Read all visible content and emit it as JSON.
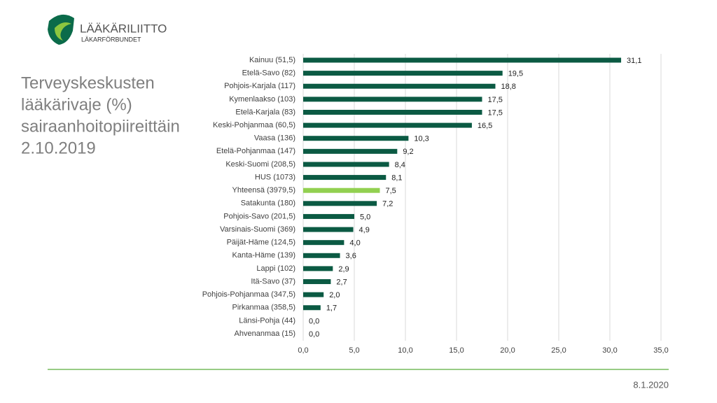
{
  "logo": {
    "name": "LÄÄKÄRILIITTO",
    "subname": "LÄKARFÖRBUNDET"
  },
  "slide_title": [
    "Terveyskeskusten",
    "lääkärivaje (%)",
    "sairaanhoitopiireittäin",
    "2.10.2019"
  ],
  "chart_data": {
    "type": "bar",
    "orientation": "horizontal",
    "categories": [
      "Kainuu (51,5)",
      "Etelä-Savo (82)",
      "Pohjois-Karjala (117)",
      "Kymenlaakso (103)",
      "Etelä-Karjala (83)",
      "Keski-Pohjanmaa (60,5)",
      "Vaasa (136)",
      "Etelä-Pohjanmaa (147)",
      "Keski-Suomi (208,5)",
      "HUS (1073)",
      "Yhteensä (3979,5)",
      "Satakunta (180)",
      "Pohjois-Savo (201,5)",
      "Varsinais-Suomi (369)",
      "Päijät-Häme (124,5)",
      "Kanta-Häme (139)",
      "Lappi (102)",
      "Itä-Savo (37)",
      "Pohjois-Pohjanmaa (347,5)",
      "Pirkanmaa (358,5)",
      "Länsi-Pohja (44)",
      "Ahvenanmaa (15)"
    ],
    "values": [
      31.1,
      19.5,
      18.8,
      17.5,
      17.5,
      16.5,
      10.3,
      9.2,
      8.4,
      8.1,
      7.5,
      7.2,
      5.0,
      4.9,
      4.0,
      3.6,
      2.9,
      2.7,
      2.0,
      1.7,
      0.0,
      0.0
    ],
    "value_labels": [
      "31,1",
      "19,5",
      "18,8",
      "17,5",
      "17,5",
      "16,5",
      "10,3",
      "9,2",
      "8,4",
      "8,1",
      "7,5",
      "7,2",
      "5,0",
      "4,9",
      "4,0",
      "3,6",
      "2,9",
      "2,7",
      "2,0",
      "1,7",
      "0,0",
      "0,0"
    ],
    "colors": [
      "#0b5a43",
      "#0b5a43",
      "#0b5a43",
      "#0b5a43",
      "#0b5a43",
      "#0b5a43",
      "#0b5a43",
      "#0b5a43",
      "#0b5a43",
      "#0b5a43",
      "#92d050",
      "#0b5a43",
      "#0b5a43",
      "#0b5a43",
      "#0b5a43",
      "#0b5a43",
      "#0b5a43",
      "#0b5a43",
      "#0b5a43",
      "#0b5a43",
      "#0b5a43",
      "#0b5a43"
    ],
    "xlim": [
      0,
      35
    ],
    "xticks": [
      {
        "value": 0,
        "label": "0,0"
      },
      {
        "value": 5,
        "label": "5,0"
      },
      {
        "value": 10,
        "label": "10,0"
      },
      {
        "value": 15,
        "label": "15,0"
      },
      {
        "value": 20,
        "label": "20,0"
      },
      {
        "value": 25,
        "label": "25,0"
      },
      {
        "value": 30,
        "label": "30,0"
      },
      {
        "value": 35,
        "label": "35,0"
      }
    ],
    "grid": true
  },
  "footer": {
    "date": "8.1.2020"
  }
}
